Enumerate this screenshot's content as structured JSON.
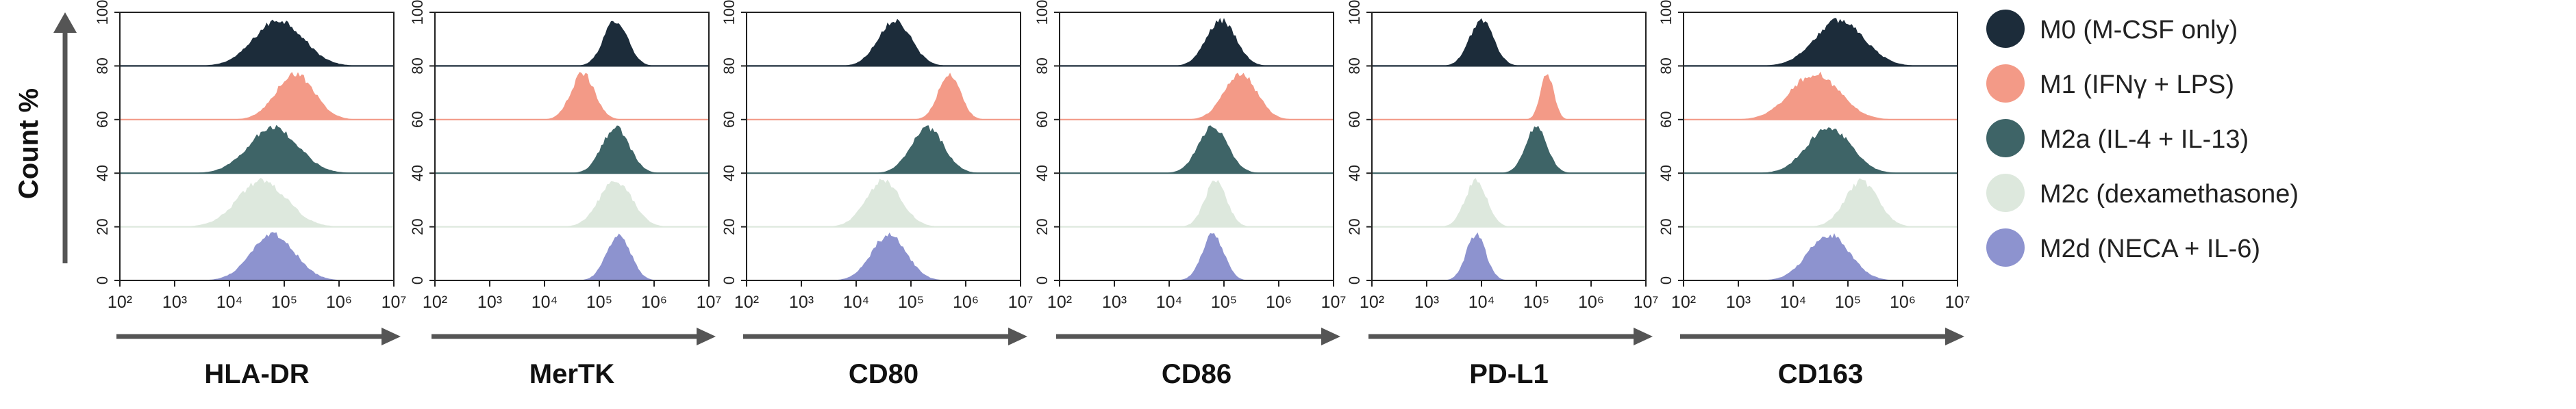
{
  "y_axis_label": "Count %",
  "legend": [
    {
      "label": "M0 (M-CSF only)",
      "color": "#1c2c3a"
    },
    {
      "label": "M1 (IFNγ + LPS)",
      "color": "#f39a87"
    },
    {
      "label": "M2a (IL-4 + IL-13)",
      "color": "#3e6467"
    },
    {
      "label": "M2c (dexamethasone)",
      "color": "#dde8dd"
    },
    {
      "label": "M2d (NECA + IL-6)",
      "color": "#8d93cf"
    }
  ],
  "chart_data": {
    "type": "area",
    "subtype": "stacked-offset histograms (flow cytometry)",
    "y_label": "Count %",
    "y_ticks": [
      "0",
      "20",
      "40",
      "60",
      "80",
      "100"
    ],
    "x_scale": "log10",
    "x_ticks": [
      "10²",
      "10³",
      "10⁴",
      "10⁵",
      "10⁶",
      "10⁷"
    ],
    "x_range": [
      100,
      10000000
    ],
    "series_names": [
      "M0 (M-CSF only)",
      "M1 (IFNγ + LPS)",
      "M2a (IL-4 + IL-13)",
      "M2c (dexamethasone)",
      "M2d (NECA + IL-6)"
    ],
    "series_colors": [
      "#1c2c3a",
      "#f39a87",
      "#3e6467",
      "#dde8dd",
      "#8d93cf"
    ],
    "panels": [
      {
        "marker": "HLA-DR",
        "peaks_log10": [
          4.9,
          5.2,
          4.8,
          4.6,
          4.8
        ],
        "widths": [
          0.45,
          0.35,
          0.45,
          0.45,
          0.4
        ]
      },
      {
        "marker": "MerTK",
        "peaks_log10": [
          5.3,
          4.7,
          5.3,
          5.3,
          5.35
        ],
        "widths": [
          0.22,
          0.22,
          0.25,
          0.3,
          0.22
        ]
      },
      {
        "marker": "CD80",
        "peaks_log10": [
          4.7,
          5.7,
          5.3,
          4.5,
          4.6
        ],
        "widths": [
          0.3,
          0.2,
          0.3,
          0.32,
          0.32
        ]
      },
      {
        "marker": "CD86",
        "peaks_log10": [
          4.95,
          5.3,
          4.8,
          4.85,
          4.8
        ],
        "widths": [
          0.27,
          0.3,
          0.27,
          0.2,
          0.2
        ]
      },
      {
        "marker": "PD-L1",
        "peaks_log10": [
          4.0,
          5.2,
          5.0,
          3.9,
          3.9
        ],
        "widths": [
          0.22,
          0.12,
          0.2,
          0.2,
          0.18
        ]
      },
      {
        "marker": "CD163",
        "peaks_log10": [
          4.85,
          4.4,
          4.65,
          5.25,
          4.65
        ],
        "widths": [
          0.45,
          0.45,
          0.4,
          0.3,
          0.38
        ]
      }
    ]
  }
}
